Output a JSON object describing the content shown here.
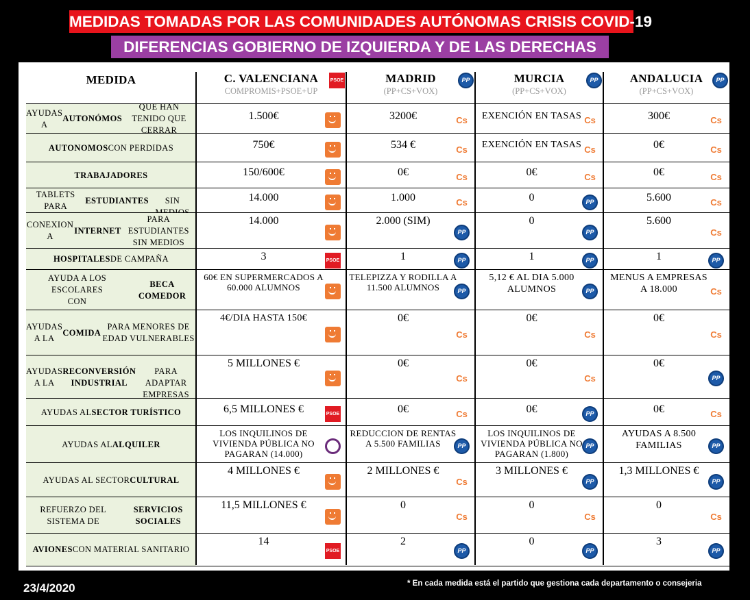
{
  "title": "MEDIDAS TOMADAS POR LAS COMUNIDADES AUTÓNOMAS CRISIS COVID-19",
  "subtitle": "DIFERENCIAS GOBIERNO DE IZQUIERDA Y DE LAS DERECHAS",
  "medida_header": "MEDIDA",
  "regions": [
    {
      "name": "C. VALENCIANA",
      "parties": "COMPROMIS+PSOE+UP",
      "logo": "psoe-logo"
    },
    {
      "name": "MADRID",
      "parties": "(PP+CS+VOX)",
      "logo": "pp-logo"
    },
    {
      "name": "MURCIA",
      "parties": "(PP+CS+VOX)",
      "logo": "pp-logo"
    },
    {
      "name": "ANDALUCIA",
      "parties": "(PP+CS+VOX)",
      "logo": "pp-logo"
    }
  ],
  "rows": [
    {
      "medida": "AYUDAS A <b>AUTONÓMOS</b> QUE HAN TENIDO QUE CERRAR",
      "cells": [
        {
          "v": "1.500€",
          "logo": "podemos"
        },
        {
          "v": "3200€",
          "logo": "cs"
        },
        {
          "v": "EXENCIÓN EN TASAS",
          "logo": "cs"
        },
        {
          "v": "300€",
          "logo": "cs"
        }
      ]
    },
    {
      "medida": "<b>AUTONOMOS</b> CON PERDIDAS",
      "cells": [
        {
          "v": "750€",
          "logo": "podemos"
        },
        {
          "v": "534 €",
          "logo": "cs"
        },
        {
          "v": "EXENCIÓN EN TASAS",
          "logo": "cs"
        },
        {
          "v": "0€",
          "logo": "cs"
        }
      ]
    },
    {
      "medida": "<b>TRABAJADORES</b>",
      "cells": [
        {
          "v": "150/600€",
          "logo": "podemos"
        },
        {
          "v": "0€",
          "logo": "cs"
        },
        {
          "v": "0€",
          "logo": "cs"
        },
        {
          "v": "0€",
          "logo": "cs"
        }
      ]
    },
    {
      "medida": "TABLETS PARA <b>ESTUDIANTES</b><br>SIN MEDIOS",
      "cells": [
        {
          "v": "14.000",
          "logo": "podemos"
        },
        {
          "v": "1.000",
          "logo": "cs"
        },
        {
          "v": "0",
          "logo": "pp"
        },
        {
          "v": "5.600",
          "logo": "cs"
        }
      ]
    },
    {
      "medida": "CONEXION A <b>INTERNET</b> PARA ESTUDIANTES<br>SIN MEDIOS",
      "cells": [
        {
          "v": "14.000",
          "logo": "podemos"
        },
        {
          "v": "2.000 (SIM)",
          "logo": "pp"
        },
        {
          "v": "0",
          "logo": "pp"
        },
        {
          "v": "5.600",
          "logo": "cs"
        }
      ]
    },
    {
      "medida": "<b>HOSPITALES</b> DE CAMPAÑA",
      "cells": [
        {
          "v": "3",
          "logo": "psoe"
        },
        {
          "v": "1",
          "logo": "pp"
        },
        {
          "v": "1",
          "logo": "pp"
        },
        {
          "v": "1",
          "logo": "pp"
        }
      ]
    },
    {
      "medida": "AYUDA A LOS ESCOLARES<br>CON <b>BECA COMEDOR</b>",
      "cells": [
        {
          "v": "60€ EN SUPERMERCADOS A 60.000 ALUMNOS",
          "logo": "podemos"
        },
        {
          "v": "TELEPIZZA Y RODILLA A 11.500 ALUMNOS",
          "logo": "pp"
        },
        {
          "v": "5,12 € AL DIA 5.000 ALUMNOS",
          "logo": "pp"
        },
        {
          "v": "MENUS A EMPRESAS A 18.000",
          "logo": "cs"
        }
      ]
    },
    {
      "medida": "AYUDAS A LA <b>COMIDA</b> PARA MENORES DE EDAD VULNERABLES",
      "cells": [
        {
          "v": "4€/DIA HASTA 150€",
          "logo": "podemos"
        },
        {
          "v": "0€",
          "logo": "cs"
        },
        {
          "v": "0€",
          "logo": "cs"
        },
        {
          "v": "0€",
          "logo": "cs"
        }
      ]
    },
    {
      "medida": "AYUDAS A LA<br><b>RECONVERSIÓN INDUSTRIAL</b><br>PARA ADAPTAR EMPRESAS",
      "cells": [
        {
          "v": "5 MILLONES €",
          "logo": "podemos"
        },
        {
          "v": "0€",
          "logo": "cs"
        },
        {
          "v": "0€",
          "logo": "cs"
        },
        {
          "v": "0€",
          "logo": "pp"
        }
      ]
    },
    {
      "medida": "AYUDAS AL <b>SECTOR TURÍSTICO</b>",
      "cells": [
        {
          "v": "6,5 MILLONES €",
          "logo": "psoe"
        },
        {
          "v": "0€",
          "logo": "cs"
        },
        {
          "v": "0€",
          "logo": "pp"
        },
        {
          "v": "0€",
          "logo": "cs"
        }
      ]
    },
    {
      "medida": "AYUDAS AL <b>ALQUILER</b>",
      "cells": [
        {
          "v": "LOS INQUILINOS DE VIVIENDA PÚBLICA NO PAGARAN (14.000)",
          "logo": "podemos-circle"
        },
        {
          "v": "REDUCCION DE RENTAS A 5.500 FAMILIAS",
          "logo": "pp"
        },
        {
          "v": "LOS INQUILINOS DE VIVIENDA PÚBLICA NO PAGARAN (1.800)",
          "logo": "pp"
        },
        {
          "v": "AYUDAS A 8.500 FAMILIAS",
          "logo": "pp"
        }
      ]
    },
    {
      "medida": "AYUDAS AL SECTOR<br><b>CULTURAL</b>",
      "cells": [
        {
          "v": "4 MILLONES €",
          "logo": "podemos"
        },
        {
          "v": "2 MILLONES €",
          "logo": "cs"
        },
        {
          "v": "3 MILLONES €",
          "logo": "pp"
        },
        {
          "v": "1,3 MILLONES €",
          "logo": "pp"
        }
      ]
    },
    {
      "medida": "REFUERZO DEL SISTEMA DE<br><b>SERVICIOS SOCIALES</b>",
      "cells": [
        {
          "v": "11,5 MILLONES €",
          "logo": "podemos"
        },
        {
          "v": "0",
          "logo": "cs"
        },
        {
          "v": "0",
          "logo": "cs"
        },
        {
          "v": "0",
          "logo": "cs"
        }
      ]
    },
    {
      "medida": "<b>AVIONES</b> CON MATERIAL SANITARIO",
      "cells": [
        {
          "v": "14",
          "logo": "psoe"
        },
        {
          "v": "2",
          "logo": "pp"
        },
        {
          "v": "0",
          "logo": "pp"
        },
        {
          "v": "3",
          "logo": "pp"
        }
      ]
    }
  ],
  "date": "23/4/2020",
  "footnote": "* En cada medida está el partido que gestiona cada departamento o consejeria",
  "logo_text": {
    "psoe": "PSOE",
    "pp": "PP",
    "cs": "Cs"
  }
}
